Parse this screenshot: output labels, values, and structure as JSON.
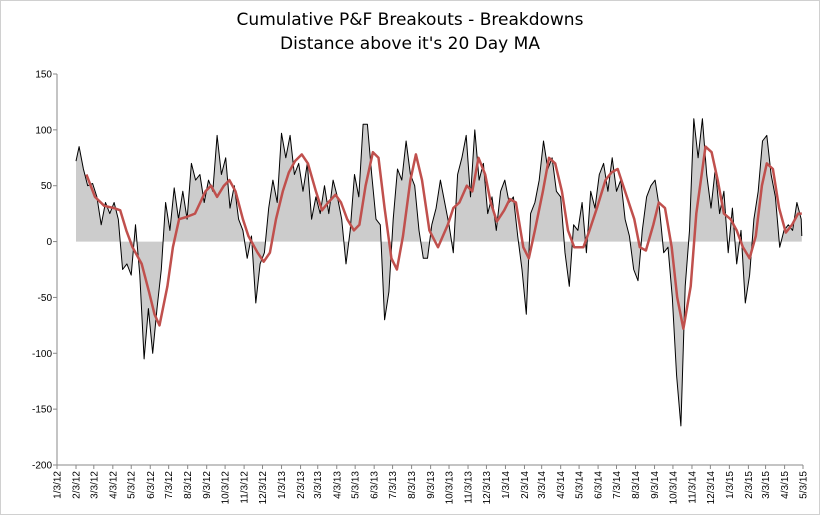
{
  "chart_data": {
    "type": "area-line",
    "title": "Cumulative P&F Breakouts - Breakdowns",
    "subtitle": "Distance above it's 20 Day MA",
    "ylim": [
      -200,
      150
    ],
    "yticks": [
      -200,
      -150,
      -100,
      -50,
      0,
      50,
      100,
      150
    ],
    "xlim": [
      "2012-01-03",
      "2015-05-03"
    ],
    "xticks": [
      {
        "value": "2012-01-03",
        "label": "1/3/12"
      },
      {
        "value": "2012-02-03",
        "label": "2/3/12"
      },
      {
        "value": "2012-03-03",
        "label": "3/3/12"
      },
      {
        "value": "2012-04-03",
        "label": "4/3/12"
      },
      {
        "value": "2012-05-03",
        "label": "5/3/12"
      },
      {
        "value": "2012-06-03",
        "label": "6/3/12"
      },
      {
        "value": "2012-07-03",
        "label": "7/3/12"
      },
      {
        "value": "2012-08-03",
        "label": "8/3/12"
      },
      {
        "value": "2012-09-03",
        "label": "9/3/12"
      },
      {
        "value": "2012-10-03",
        "label": "10/3/12"
      },
      {
        "value": "2012-11-03",
        "label": "11/3/12"
      },
      {
        "value": "2012-12-03",
        "label": "12/3/12"
      },
      {
        "value": "2013-01-03",
        "label": "1/3/13"
      },
      {
        "value": "2013-02-03",
        "label": "2/3/13"
      },
      {
        "value": "2013-03-03",
        "label": "3/3/13"
      },
      {
        "value": "2013-04-03",
        "label": "4/3/13"
      },
      {
        "value": "2013-05-03",
        "label": "5/3/13"
      },
      {
        "value": "2013-06-03",
        "label": "6/3/13"
      },
      {
        "value": "2013-07-03",
        "label": "7/3/13"
      },
      {
        "value": "2013-08-03",
        "label": "8/3/13"
      },
      {
        "value": "2013-09-03",
        "label": "9/3/13"
      },
      {
        "value": "2013-10-03",
        "label": "10/3/13"
      },
      {
        "value": "2013-11-03",
        "label": "11/3/13"
      },
      {
        "value": "2013-12-03",
        "label": "12/3/13"
      },
      {
        "value": "2014-01-03",
        "label": "1/3/14"
      },
      {
        "value": "2014-02-03",
        "label": "2/3/14"
      },
      {
        "value": "2014-03-03",
        "label": "3/3/14"
      },
      {
        "value": "2014-04-03",
        "label": "4/3/14"
      },
      {
        "value": "2014-05-03",
        "label": "5/3/14"
      },
      {
        "value": "2014-06-03",
        "label": "6/3/14"
      },
      {
        "value": "2014-07-03",
        "label": "7/3/14"
      },
      {
        "value": "2014-08-03",
        "label": "8/3/14"
      },
      {
        "value": "2014-09-03",
        "label": "9/3/14"
      },
      {
        "value": "2014-10-03",
        "label": "10/3/14"
      },
      {
        "value": "2014-11-03",
        "label": "11/3/14"
      },
      {
        "value": "2014-12-03",
        "label": "12/3/14"
      },
      {
        "value": "2015-01-03",
        "label": "1/3/15"
      },
      {
        "value": "2015-02-03",
        "label": "2/3/15"
      },
      {
        "value": "2015-03-03",
        "label": "3/3/15"
      },
      {
        "value": "2015-04-03",
        "label": "4/3/15"
      },
      {
        "value": "2015-05-03",
        "label": "5/3/15"
      }
    ],
    "series": [
      {
        "color": "#000000",
        "fill": "#cccccc",
        "x": [
          "2012-02-03",
          "2012-02-08",
          "2012-02-15",
          "2012-02-22",
          "2012-03-01",
          "2012-03-08",
          "2012-03-15",
          "2012-03-22",
          "2012-03-29",
          "2012-04-05",
          "2012-04-12",
          "2012-04-19",
          "2012-04-26",
          "2012-05-03",
          "2012-05-10",
          "2012-05-17",
          "2012-05-24",
          "2012-05-31",
          "2012-06-07",
          "2012-06-14",
          "2012-06-21",
          "2012-06-28",
          "2012-07-05",
          "2012-07-12",
          "2012-07-19",
          "2012-07-26",
          "2012-08-02",
          "2012-08-09",
          "2012-08-16",
          "2012-08-23",
          "2012-08-30",
          "2012-09-06",
          "2012-09-13",
          "2012-09-20",
          "2012-09-27",
          "2012-10-04",
          "2012-10-11",
          "2012-10-18",
          "2012-10-25",
          "2012-11-01",
          "2012-11-08",
          "2012-11-15",
          "2012-11-22",
          "2012-11-29",
          "2012-12-06",
          "2012-12-13",
          "2012-12-20",
          "2012-12-27",
          "2013-01-03",
          "2013-01-10",
          "2013-01-17",
          "2013-01-24",
          "2013-01-31",
          "2013-02-07",
          "2013-02-14",
          "2013-02-21",
          "2013-02-28",
          "2013-03-07",
          "2013-03-14",
          "2013-03-21",
          "2013-03-28",
          "2013-04-04",
          "2013-04-11",
          "2013-04-18",
          "2013-04-25",
          "2013-05-02",
          "2013-05-09",
          "2013-05-16",
          "2013-05-23",
          "2013-05-30",
          "2013-06-06",
          "2013-06-13",
          "2013-06-20",
          "2013-06-27",
          "2013-07-04",
          "2013-07-11",
          "2013-07-18",
          "2013-07-25",
          "2013-08-01",
          "2013-08-08",
          "2013-08-15",
          "2013-08-22",
          "2013-08-29",
          "2013-09-05",
          "2013-09-12",
          "2013-09-19",
          "2013-09-26",
          "2013-10-03",
          "2013-10-10",
          "2013-10-17",
          "2013-10-24",
          "2013-10-31",
          "2013-11-07",
          "2013-11-14",
          "2013-11-21",
          "2013-11-28",
          "2013-12-05",
          "2013-12-12",
          "2013-12-19",
          "2013-12-26",
          "2014-01-02",
          "2014-01-09",
          "2014-01-16",
          "2014-01-23",
          "2014-01-30",
          "2014-02-06",
          "2014-02-13",
          "2014-02-20",
          "2014-02-27",
          "2014-03-06",
          "2014-03-13",
          "2014-03-20",
          "2014-03-27",
          "2014-04-03",
          "2014-04-10",
          "2014-04-17",
          "2014-04-24",
          "2014-05-01",
          "2014-05-08",
          "2014-05-15",
          "2014-05-22",
          "2014-05-29",
          "2014-06-05",
          "2014-06-12",
          "2014-06-19",
          "2014-06-26",
          "2014-07-03",
          "2014-07-10",
          "2014-07-17",
          "2014-07-24",
          "2014-07-31",
          "2014-08-07",
          "2014-08-14",
          "2014-08-21",
          "2014-08-28",
          "2014-09-04",
          "2014-09-11",
          "2014-09-18",
          "2014-09-25",
          "2014-10-02",
          "2014-10-09",
          "2014-10-16",
          "2014-10-23",
          "2014-10-30",
          "2014-11-06",
          "2014-11-13",
          "2014-11-20",
          "2014-11-27",
          "2014-12-04",
          "2014-12-11",
          "2014-12-18",
          "2014-12-25",
          "2015-01-01",
          "2015-01-08",
          "2015-01-15",
          "2015-01-22",
          "2015-01-29",
          "2015-02-05",
          "2015-02-12",
          "2015-02-19",
          "2015-02-26",
          "2015-03-05",
          "2015-03-12",
          "2015-03-19",
          "2015-03-26",
          "2015-04-02",
          "2015-04-09",
          "2015-04-16",
          "2015-04-23",
          "2015-04-30",
          "2015-05-01"
        ],
        "values": [
          72,
          85,
          65,
          50,
          52,
          40,
          15,
          35,
          25,
          35,
          20,
          -25,
          -20,
          -30,
          15,
          -30,
          -105,
          -60,
          -100,
          -60,
          -25,
          35,
          10,
          48,
          20,
          45,
          20,
          70,
          55,
          60,
          35,
          55,
          45,
          95,
          60,
          75,
          30,
          50,
          20,
          10,
          -15,
          5,
          -55,
          -20,
          -10,
          30,
          55,
          35,
          97,
          75,
          95,
          60,
          70,
          45,
          70,
          20,
          40,
          25,
          50,
          25,
          55,
          40,
          20,
          -20,
          10,
          60,
          40,
          105,
          105,
          60,
          20,
          15,
          -70,
          -45,
          20,
          65,
          55,
          90,
          60,
          50,
          10,
          -15,
          -15,
          15,
          30,
          55,
          35,
          15,
          -10,
          60,
          75,
          95,
          40,
          100,
          55,
          70,
          25,
          40,
          10,
          45,
          55,
          35,
          40,
          5,
          -25,
          -65,
          25,
          35,
          55,
          90,
          65,
          75,
          45,
          40,
          -10,
          -40,
          15,
          10,
          35,
          -10,
          45,
          30,
          60,
          70,
          45,
          75,
          45,
          55,
          20,
          5,
          -25,
          -35,
          10,
          40,
          50,
          55,
          30,
          -10,
          -5,
          -50,
          -120,
          -165,
          -40,
          10,
          110,
          75,
          110,
          60,
          30,
          65,
          25,
          45,
          -10,
          30,
          -20,
          10,
          -55,
          -30,
          20,
          45,
          90,
          95,
          60,
          40,
          -5,
          10,
          15,
          10,
          35,
          20,
          5
        ]
      },
      {
        "color": "#c0504d",
        "x": [
          "2012-02-20",
          "2012-03-05",
          "2012-03-20",
          "2012-04-05",
          "2012-04-15",
          "2012-04-25",
          "2012-05-05",
          "2012-05-20",
          "2012-06-01",
          "2012-06-10",
          "2012-06-18",
          "2012-07-01",
          "2012-07-10",
          "2012-07-20",
          "2012-08-01",
          "2012-08-15",
          "2012-09-01",
          "2012-09-10",
          "2012-09-20",
          "2012-10-01",
          "2012-10-10",
          "2012-10-20",
          "2012-11-01",
          "2012-11-10",
          "2012-11-25",
          "2012-12-05",
          "2012-12-15",
          "2012-12-25",
          "2013-01-05",
          "2013-01-15",
          "2013-01-25",
          "2013-02-05",
          "2013-02-15",
          "2013-02-28",
          "2013-03-10",
          "2013-03-20",
          "2013-04-01",
          "2013-04-10",
          "2013-04-20",
          "2013-05-01",
          "2013-05-10",
          "2013-05-20",
          "2013-06-01",
          "2013-06-10",
          "2013-06-20",
          "2013-07-01",
          "2013-07-10",
          "2013-07-20",
          "2013-08-01",
          "2013-08-10",
          "2013-08-20",
          "2013-09-01",
          "2013-09-15",
          "2013-10-01",
          "2013-10-10",
          "2013-10-20",
          "2013-11-01",
          "2013-11-10",
          "2013-11-20",
          "2013-12-01",
          "2013-12-10",
          "2013-12-20",
          "2014-01-01",
          "2014-01-10",
          "2014-01-20",
          "2014-02-01",
          "2014-02-10",
          "2014-02-20",
          "2014-03-05",
          "2014-03-15",
          "2014-03-25",
          "2014-04-05",
          "2014-04-15",
          "2014-04-25",
          "2014-05-10",
          "2014-05-20",
          "2014-06-01",
          "2014-06-15",
          "2014-06-25",
          "2014-07-05",
          "2014-07-20",
          "2014-08-01",
          "2014-08-10",
          "2014-08-20",
          "2014-09-01",
          "2014-09-10",
          "2014-09-20",
          "2014-10-01",
          "2014-10-10",
          "2014-10-20",
          "2014-11-01",
          "2014-11-10",
          "2014-11-25",
          "2014-12-05",
          "2014-12-15",
          "2014-12-25",
          "2015-01-05",
          "2015-01-15",
          "2015-01-25",
          "2015-02-05",
          "2015-02-15",
          "2015-02-25",
          "2015-03-05",
          "2015-03-15",
          "2015-03-25",
          "2015-04-05",
          "2015-04-15",
          "2015-04-25",
          "2015-05-01"
        ],
        "values": [
          60,
          40,
          32,
          30,
          28,
          10,
          -5,
          -20,
          -45,
          -65,
          -75,
          -40,
          -5,
          20,
          22,
          25,
          45,
          50,
          40,
          50,
          55,
          45,
          20,
          5,
          -10,
          -18,
          -10,
          20,
          45,
          62,
          72,
          78,
          70,
          45,
          28,
          35,
          42,
          35,
          20,
          10,
          15,
          50,
          80,
          75,
          30,
          -15,
          -25,
          5,
          55,
          78,
          55,
          10,
          -5,
          15,
          30,
          35,
          50,
          45,
          75,
          60,
          35,
          18,
          28,
          38,
          35,
          -5,
          -15,
          10,
          45,
          75,
          70,
          45,
          10,
          -5,
          -5,
          10,
          30,
          55,
          62,
          65,
          40,
          20,
          -5,
          -8,
          15,
          35,
          30,
          -5,
          -50,
          -78,
          -40,
          25,
          85,
          80,
          55,
          25,
          20,
          10,
          -5,
          -15,
          5,
          50,
          70,
          65,
          30,
          8,
          15,
          25,
          25
        ]
      }
    ]
  }
}
